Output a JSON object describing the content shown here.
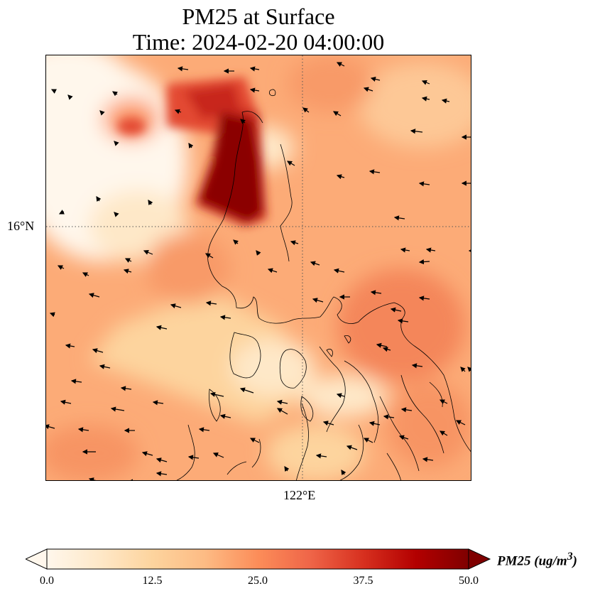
{
  "figure": {
    "title_line1": "PM25 at Surface",
    "title_line2": "Time: 2024-02-20 04:00:00"
  },
  "map": {
    "latitude_label": "16°N",
    "longitude_label": "122°E",
    "gridline_style": "dotted",
    "coastline_color": "#000000",
    "wind_vectors": "black arrows, mostly pointing west / west-southwest"
  },
  "colorbar": {
    "label": "PM25 (ug/m",
    "label_superscript": "3",
    "label_close": ")",
    "ticks": [
      "0.0",
      "12.5",
      "25.0",
      "37.5",
      "50.0"
    ],
    "min": 0,
    "max": 50,
    "extend": "both",
    "colormap": "OrRd",
    "colors": [
      "#fff7ec",
      "#fee8c8",
      "#fdd49e",
      "#fdbb84",
      "#fc8d59",
      "#ef6548",
      "#d7301f",
      "#b30000",
      "#7f0000"
    ]
  }
}
